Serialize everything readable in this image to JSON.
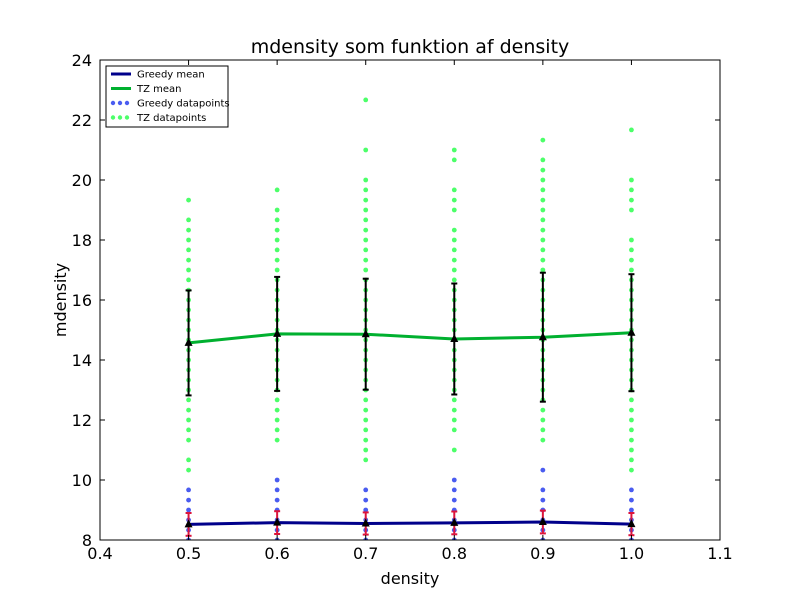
{
  "chart_data": {
    "type": "line",
    "title": "mdensity som funktion af density",
    "xlabel": "density",
    "ylabel": "mdensity",
    "xlim": [
      0.4,
      1.1
    ],
    "ylim": [
      8,
      24
    ],
    "xticks": [
      "0.4",
      "0.5",
      "0.6",
      "0.7",
      "0.8",
      "0.9",
      "1.0",
      "1.1"
    ],
    "yticks": [
      "8",
      "10",
      "12",
      "14",
      "16",
      "18",
      "20",
      "22",
      "24"
    ],
    "x": [
      0.5,
      0.6,
      0.7,
      0.8,
      0.9,
      1.0
    ],
    "grid": false,
    "legend_position": "top-left",
    "series": [
      {
        "name": "Greedy mean",
        "kind": "line",
        "color": "#00008b",
        "values": [
          8.52,
          8.58,
          8.55,
          8.57,
          8.6,
          8.53
        ],
        "errors": [
          0.38,
          0.38,
          0.37,
          0.38,
          0.38,
          0.37
        ],
        "error_color": "#dc143c"
      },
      {
        "name": "TZ mean",
        "kind": "line",
        "color": "#00b02f",
        "values": [
          14.57,
          14.87,
          14.86,
          14.7,
          14.76,
          14.91
        ],
        "errors": [
          1.75,
          1.9,
          1.85,
          1.85,
          2.15,
          1.95
        ],
        "error_color": "#000000"
      },
      {
        "name": "Greedy datapoints",
        "kind": "scatter",
        "color": "#4a5cf0",
        "points": [
          [
            0.5,
            [
              8.0,
              8.33,
              8.67,
              9.0,
              9.33,
              9.67
            ]
          ],
          [
            0.6,
            [
              8.0,
              8.33,
              8.67,
              9.0,
              9.33,
              9.67,
              10.0
            ]
          ],
          [
            0.7,
            [
              8.0,
              8.33,
              8.67,
              9.0,
              9.33,
              9.67
            ]
          ],
          [
            0.8,
            [
              8.0,
              8.33,
              8.67,
              9.0,
              9.33,
              9.67,
              10.0
            ]
          ],
          [
            0.9,
            [
              8.0,
              8.33,
              8.67,
              9.0,
              9.33,
              9.67,
              10.33
            ]
          ],
          [
            1.0,
            [
              8.0,
              8.33,
              8.67,
              9.0,
              9.33,
              9.67
            ]
          ]
        ]
      },
      {
        "name": "TZ datapoints",
        "kind": "scatter",
        "color": "#4dff6a",
        "points": [
          [
            0.5,
            [
              10.33,
              10.67,
              11.33,
              11.67,
              12.0,
              12.33,
              12.67,
              13.0,
              13.33,
              13.67,
              14.0,
              14.33,
              14.67,
              15.0,
              15.33,
              15.67,
              16.0,
              16.33,
              16.67,
              17.0,
              17.33,
              17.67,
              18.0,
              18.33,
              18.67,
              19.33
            ]
          ],
          [
            0.6,
            [
              11.33,
              11.67,
              12.0,
              12.33,
              12.67,
              13.0,
              13.33,
              13.67,
              14.0,
              14.33,
              14.67,
              15.0,
              15.33,
              15.67,
              16.0,
              16.33,
              16.67,
              17.0,
              17.33,
              17.67,
              18.0,
              18.33,
              18.67,
              19.0,
              19.67
            ]
          ],
          [
            0.7,
            [
              10.67,
              11.0,
              11.33,
              11.67,
              12.0,
              12.33,
              12.67,
              13.0,
              13.33,
              13.67,
              14.0,
              14.33,
              14.67,
              15.0,
              15.33,
              15.67,
              16.0,
              16.33,
              16.67,
              17.0,
              17.33,
              17.67,
              18.0,
              18.33,
              18.67,
              19.0,
              19.33,
              19.67,
              20.0,
              21.0,
              22.67
            ]
          ],
          [
            0.8,
            [
              11.0,
              11.67,
              12.0,
              12.33,
              12.67,
              13.0,
              13.33,
              13.67,
              14.0,
              14.33,
              14.67,
              15.0,
              15.33,
              15.67,
              16.0,
              16.33,
              16.67,
              17.0,
              17.33,
              17.67,
              18.0,
              18.33,
              19.0,
              19.33,
              19.67,
              20.67,
              21.0
            ]
          ],
          [
            0.9,
            [
              11.33,
              11.67,
              12.0,
              12.33,
              12.67,
              13.0,
              13.33,
              13.67,
              14.0,
              14.33,
              14.67,
              15.0,
              15.33,
              15.67,
              16.0,
              16.33,
              16.67,
              17.0,
              17.33,
              17.67,
              18.0,
              18.33,
              18.67,
              19.0,
              19.33,
              19.67,
              20.0,
              20.33,
              20.67,
              21.33
            ]
          ],
          [
            1.0,
            [
              10.33,
              10.67,
              11.0,
              11.33,
              11.67,
              12.0,
              12.33,
              12.67,
              13.0,
              13.33,
              13.67,
              14.0,
              14.33,
              14.67,
              15.0,
              15.33,
              15.67,
              16.0,
              16.33,
              16.67,
              17.0,
              17.33,
              17.67,
              18.0,
              19.0,
              19.33,
              19.67,
              20.0,
              21.67
            ]
          ]
        ]
      }
    ]
  }
}
